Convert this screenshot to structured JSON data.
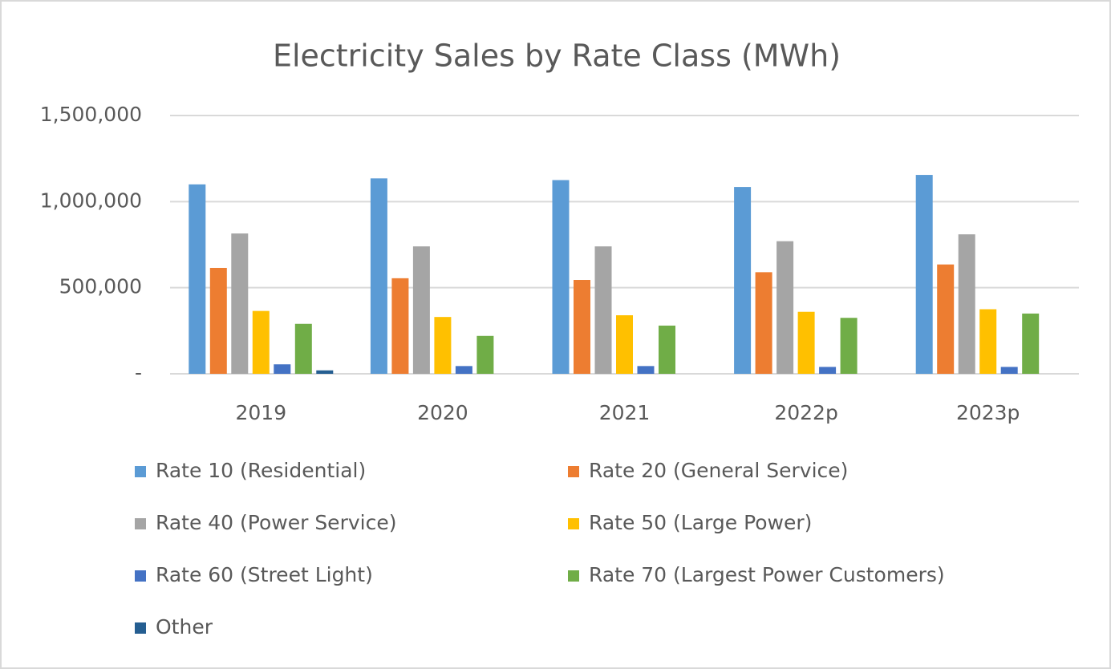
{
  "chart_data": {
    "type": "bar",
    "title": "Electricity Sales by Rate Class (MWh)",
    "categories": [
      "2019",
      "2020",
      "2021",
      "2022p",
      "2023p"
    ],
    "series": [
      {
        "name": "Rate 10 (Residential)",
        "color": "#5b9bd5",
        "values": [
          1100000,
          1135000,
          1125000,
          1085000,
          1155000
        ]
      },
      {
        "name": "Rate 20 (General Service)",
        "color": "#ed7d31",
        "values": [
          615000,
          555000,
          545000,
          590000,
          635000
        ]
      },
      {
        "name": "Rate 40 (Power Service)",
        "color": "#a5a5a5",
        "values": [
          815000,
          740000,
          740000,
          770000,
          810000
        ]
      },
      {
        "name": "Rate 50 (Large Power)",
        "color": "#ffc000",
        "values": [
          365000,
          330000,
          340000,
          360000,
          375000
        ]
      },
      {
        "name": "Rate 60 (Street Light)",
        "color": "#4472c4",
        "values": [
          55000,
          45000,
          45000,
          40000,
          40000
        ]
      },
      {
        "name": "Rate 70 (Largest Power Customers)",
        "color": "#70ad47",
        "values": [
          290000,
          220000,
          280000,
          325000,
          350000
        ]
      },
      {
        "name": "Other",
        "color": "#255e91",
        "values": [
          20000,
          0,
          0,
          0,
          0
        ]
      }
    ],
    "ylim": [
      0,
      1500000
    ],
    "yticks": [
      {
        "value": 0,
        "label": "-"
      },
      {
        "value": 500000,
        "label": "500,000"
      },
      {
        "value": 1000000,
        "label": "1,000,000"
      },
      {
        "value": 1500000,
        "label": "1,500,000"
      }
    ],
    "grid": true,
    "legend": "bottom"
  }
}
